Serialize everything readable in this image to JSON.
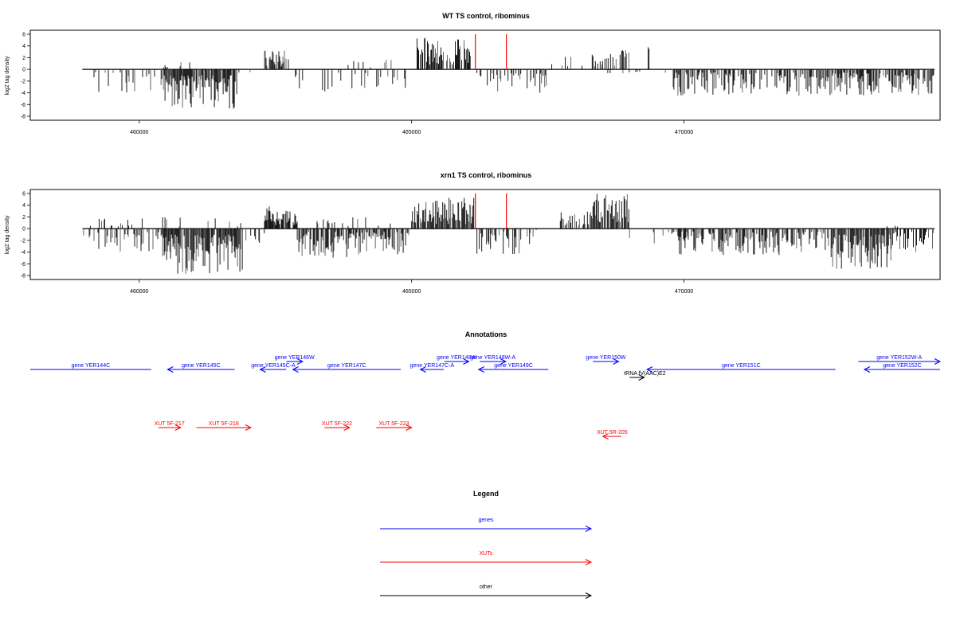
{
  "colors": {
    "genes": "#0000ff",
    "xuts": "#ff0000",
    "other": "#000000",
    "marker": "#ff0000",
    "bars": "#000000"
  },
  "chart_data": [
    {
      "type": "bar",
      "title": "WT TS control, ribominus",
      "ylabel": "log2 tag density",
      "xlim": [
        458000,
        474700
      ],
      "ylim": [
        -8,
        6
      ],
      "yticks": [
        6,
        4,
        2,
        0,
        -2,
        -4,
        -6,
        -8
      ],
      "xticks": [
        460000,
        465000,
        470000
      ],
      "xtick_labels": [
        "460000",
        "465000",
        "470000"
      ],
      "red_markers": [
        466170,
        466740
      ],
      "regions": [
        {
          "start": 458980,
          "end": 460300,
          "mode": "neg",
          "lo": 0.4,
          "hi": 4.0,
          "density": 0.25
        },
        {
          "start": 460400,
          "end": 461800,
          "mode": "neg",
          "lo": 1.0,
          "hi": 6.8,
          "density": 0.9
        },
        {
          "start": 460400,
          "end": 460950,
          "mode": "pos",
          "lo": 0.3,
          "hi": 1.6,
          "density": 0.12
        },
        {
          "start": 461800,
          "end": 462300,
          "mode": "neg",
          "lo": 0.2,
          "hi": 1.5,
          "density": 0.1
        },
        {
          "start": 462300,
          "end": 462750,
          "mode": "pos",
          "lo": 0.5,
          "hi": 3.3,
          "density": 0.6
        },
        {
          "start": 462750,
          "end": 464950,
          "mode": "neg",
          "lo": 0.5,
          "hi": 3.8,
          "density": 0.25
        },
        {
          "start": 463000,
          "end": 464800,
          "mode": "pos",
          "lo": 0.3,
          "hi": 1.8,
          "density": 0.05
        },
        {
          "start": 465100,
          "end": 466100,
          "mode": "pos",
          "lo": 0.8,
          "hi": 5.5,
          "density": 0.8
        },
        {
          "start": 466200,
          "end": 467500,
          "mode": "neg",
          "lo": 0.5,
          "hi": 4.0,
          "density": 0.4
        },
        {
          "start": 467500,
          "end": 468200,
          "mode": "pos",
          "lo": 0.3,
          "hi": 2.2,
          "density": 0.1
        },
        {
          "start": 468300,
          "end": 469000,
          "mode": "pos",
          "lo": 0.5,
          "hi": 3.5,
          "density": 0.6
        },
        {
          "start": 468600,
          "end": 469200,
          "mode": "neg",
          "lo": 0.2,
          "hi": 1.2,
          "density": 0.1
        },
        {
          "start": 469300,
          "end": 469400,
          "mode": "pos",
          "lo": 3.0,
          "hi": 3.8,
          "density": 0.3
        },
        {
          "start": 469350,
          "end": 469800,
          "mode": "neg",
          "lo": 0.2,
          "hi": 1.0,
          "density": 0.08
        },
        {
          "start": 469800,
          "end": 474600,
          "mode": "neg",
          "lo": 0.5,
          "hi": 4.5,
          "density": 0.6
        }
      ]
    },
    {
      "type": "bar",
      "title": "xrn1 TS control, ribominus",
      "ylabel": "log2 tag density",
      "xlim": [
        458000,
        474700
      ],
      "ylim": [
        -8,
        6
      ],
      "yticks": [
        6,
        4,
        2,
        0,
        -2,
        -4,
        -6,
        -8
      ],
      "xticks": [
        460000,
        465000,
        470000
      ],
      "xtick_labels": [
        "460000",
        "465000",
        "470000"
      ],
      "red_markers": [
        466170,
        466740
      ],
      "regions": [
        {
          "start": 458980,
          "end": 460400,
          "mode": "neg",
          "lo": 0.5,
          "hi": 4.0,
          "density": 0.4
        },
        {
          "start": 459000,
          "end": 460400,
          "mode": "pos",
          "lo": 0.3,
          "hi": 1.8,
          "density": 0.1
        },
        {
          "start": 460400,
          "end": 461900,
          "mode": "neg",
          "lo": 1.0,
          "hi": 8.0,
          "density": 0.95
        },
        {
          "start": 460400,
          "end": 461900,
          "mode": "pos",
          "lo": 0.3,
          "hi": 2.2,
          "density": 0.1
        },
        {
          "start": 461900,
          "end": 462300,
          "mode": "neg",
          "lo": 0.3,
          "hi": 2.5,
          "density": 0.2
        },
        {
          "start": 462300,
          "end": 462900,
          "mode": "pos",
          "lo": 0.5,
          "hi": 4.2,
          "density": 0.8
        },
        {
          "start": 462900,
          "end": 464950,
          "mode": "neg",
          "lo": 0.5,
          "hi": 5.0,
          "density": 0.7
        },
        {
          "start": 463000,
          "end": 464900,
          "mode": "pos",
          "lo": 0.3,
          "hi": 2.0,
          "density": 0.1
        },
        {
          "start": 465000,
          "end": 466150,
          "mode": "pos",
          "lo": 0.8,
          "hi": 5.6,
          "density": 0.9
        },
        {
          "start": 466200,
          "end": 467200,
          "mode": "neg",
          "lo": 0.5,
          "hi": 4.5,
          "density": 0.5
        },
        {
          "start": 467200,
          "end": 467600,
          "mode": "neg",
          "lo": 0.2,
          "hi": 1.5,
          "density": 0.1
        },
        {
          "start": 467700,
          "end": 468300,
          "mode": "pos",
          "lo": 0.5,
          "hi": 3.0,
          "density": 0.5
        },
        {
          "start": 468300,
          "end": 469000,
          "mode": "pos",
          "lo": 1.0,
          "hi": 6.0,
          "density": 0.9
        },
        {
          "start": 469000,
          "end": 469800,
          "mode": "neg",
          "lo": 0.2,
          "hi": 2.5,
          "density": 0.15
        },
        {
          "start": 469800,
          "end": 472700,
          "mode": "neg",
          "lo": 0.5,
          "hi": 4.5,
          "density": 0.6
        },
        {
          "start": 472700,
          "end": 473800,
          "mode": "neg",
          "lo": 1.0,
          "hi": 7.0,
          "density": 0.9
        },
        {
          "start": 473800,
          "end": 474600,
          "mode": "neg",
          "lo": 0.5,
          "hi": 4.0,
          "density": 0.5
        },
        {
          "start": 473700,
          "end": 474000,
          "mode": "pos",
          "lo": 0.3,
          "hi": 1.2,
          "density": 0.15
        }
      ]
    }
  ],
  "annotations": {
    "title": "Annotations",
    "genes": [
      {
        "label": "gene YER144C",
        "start": 458000,
        "end": 460220,
        "strand": "-",
        "arrow": false,
        "row": 0
      },
      {
        "label": "gene YER145C",
        "start": 460520,
        "end": 461750,
        "strand": "-",
        "arrow": true,
        "row": 0
      },
      {
        "label": "gene YER146W",
        "start": 462700,
        "end": 463000,
        "strand": "+",
        "arrow": true,
        "row": -1
      },
      {
        "label": "gene YER145C-A",
        "start": 462220,
        "end": 462700,
        "strand": "-",
        "arrow": true,
        "row": 0
      },
      {
        "label": "gene YER147C",
        "start": 462820,
        "end": 464800,
        "strand": "-",
        "arrow": true,
        "row": 0
      },
      {
        "label": "gene YER147C-A",
        "start": 465160,
        "end": 465590,
        "strand": "-",
        "arrow": true,
        "row": 0
      },
      {
        "label": "gene YER148W",
        "start": 465600,
        "end": 466050,
        "strand": "+",
        "arrow": true,
        "row": -1
      },
      {
        "label": "gene YER148W-A",
        "start": 466250,
        "end": 466730,
        "strand": "+",
        "arrow": true,
        "row": -1
      },
      {
        "label": "gene YER149C",
        "start": 466230,
        "end": 467510,
        "strand": "-",
        "arrow": true,
        "row": 0
      },
      {
        "label": "gene YER150W",
        "start": 468330,
        "end": 468800,
        "strand": "+",
        "arrow": true,
        "row": -1
      },
      {
        "label": "gene YER151C",
        "start": 469320,
        "end": 472780,
        "strand": "-",
        "arrow": true,
        "row": 0
      },
      {
        "label": "gene YER152W-A",
        "start": 473200,
        "end": 474700,
        "strand": "+",
        "arrow": true,
        "row": -1
      },
      {
        "label": "gene YER152C",
        "start": 473310,
        "end": 474700,
        "strand": "-",
        "arrow": true,
        "row": 0
      }
    ],
    "xuts": [
      {
        "label": "XUT 5F-217",
        "start": 460350,
        "end": 460760,
        "strand": "+",
        "row": 0
      },
      {
        "label": "XUT 5F-218",
        "start": 461050,
        "end": 462050,
        "strand": "+",
        "row": 0
      },
      {
        "label": "XUT 5F-222",
        "start": 463400,
        "end": 463860,
        "strand": "+",
        "row": 0
      },
      {
        "label": "XUT 5F-223",
        "start": 464350,
        "end": 465000,
        "strand": "+",
        "row": 0
      },
      {
        "label": "XUT 5R-205",
        "start": 468510,
        "end": 468850,
        "strand": "-",
        "row": 1
      }
    ],
    "other": [
      {
        "label": "tRNA fV(AAC)E2",
        "start": 469000,
        "end": 469270,
        "strand": "+",
        "row": 1
      }
    ]
  },
  "legend": {
    "title": "Legend",
    "items": [
      {
        "label": "genes",
        "color": "#0000ff"
      },
      {
        "label": "XUTs",
        "color": "#ff0000"
      },
      {
        "label": "other",
        "color": "#000000"
      }
    ]
  }
}
